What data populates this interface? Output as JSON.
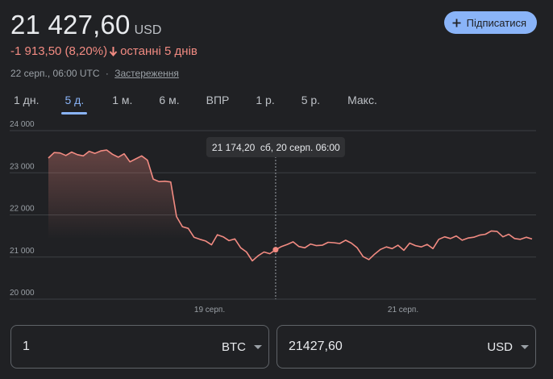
{
  "header": {
    "price": "21 427,60",
    "currency": "USD",
    "change_text": "-1 913,50 (8,20%)",
    "period_text": "останні 5 днів",
    "timestamp": "22 серп., 06:00 UTC",
    "separator": "·",
    "disclaimer_link": "Застереження",
    "subscribe_label": "Підписатися"
  },
  "colors": {
    "background": "#202124",
    "negative": "#f28b82",
    "accent": "#8ab4f8",
    "gridline": "#3c4043"
  },
  "tabs": [
    {
      "label": "1 дн."
    },
    {
      "label": "5 д.",
      "active": true
    },
    {
      "label": "1 м."
    },
    {
      "label": "6 м."
    },
    {
      "label": "ВПР"
    },
    {
      "label": "1 р."
    },
    {
      "label": "5 р."
    },
    {
      "label": "Макс."
    }
  ],
  "chart_data": {
    "type": "area",
    "title": "",
    "xlabel": "",
    "ylabel": "",
    "ylim": [
      20000,
      24000
    ],
    "yticks": [
      20000,
      21000,
      22000,
      23000,
      24000
    ],
    "ytick_labels": [
      "20 000",
      "21 000",
      "22 000",
      "23 000",
      "24 000"
    ],
    "xtick_labels": [
      {
        "label": "19 серп.",
        "at": "19 серп. 00:00"
      },
      {
        "label": "21 серп.",
        "at": "21 серп. 00:00"
      }
    ],
    "x_range_hours": [
      0,
      120
    ],
    "grid": true,
    "series": [
      {
        "values": [
          23350,
          23480,
          23470,
          23410,
          23490,
          23430,
          23400,
          23510,
          23460,
          23520,
          23540,
          23440,
          23370,
          23450,
          23260,
          23330,
          23400,
          23300,
          22850,
          22790,
          22800,
          22780,
          21960,
          21720,
          21680,
          21470,
          21420,
          21380,
          21290,
          21530,
          21480,
          21390,
          21430,
          21220,
          21120,
          20910,
          21030,
          21120,
          21080,
          21174,
          21250,
          21300,
          21360,
          21250,
          21220,
          21310,
          21270,
          21280,
          21350,
          21340,
          21320,
          21400,
          21330,
          21220,
          21010,
          20940,
          21070,
          21180,
          21240,
          21200,
          21280,
          21160,
          21330,
          21270,
          21240,
          21300,
          21200,
          21420,
          21480,
          21440,
          21500,
          21400,
          21450,
          21470,
          21520,
          21540,
          21620,
          21610,
          21480,
          21540,
          21440,
          21420,
          21470,
          21427.6
        ]
      }
    ],
    "hover": {
      "value_label": "21 174,20",
      "date_label": "сб, 20 серп. 06:00",
      "index": 39
    }
  },
  "converter": {
    "from_value": "1",
    "from_unit": "BTC",
    "to_value": "21427,60",
    "to_unit": "USD"
  }
}
